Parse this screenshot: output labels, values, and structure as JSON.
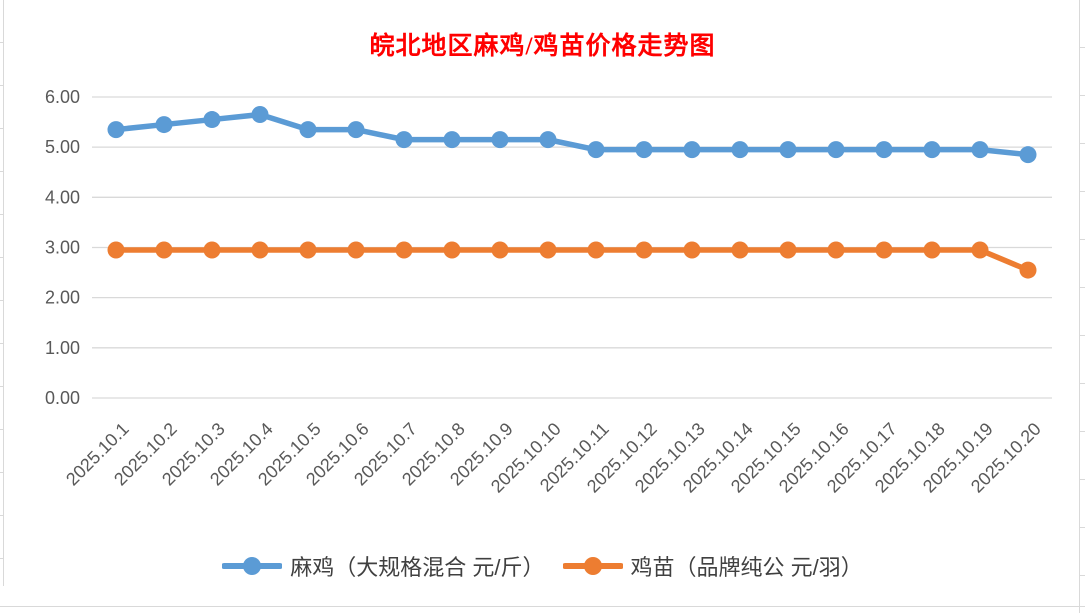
{
  "chart_data": {
    "type": "line",
    "title": "皖北地区麻鸡/鸡苗价格走势图",
    "title_color": "#FF0000",
    "categories": [
      "2025.10.1",
      "2025.10.2",
      "2025.10.3",
      "2025.10.4",
      "2025.10.5",
      "2025.10.6",
      "2025.10.7",
      "2025.10.8",
      "2025.10.9",
      "2025.10.10",
      "2025.10.11",
      "2025.10.12",
      "2025.10.13",
      "2025.10.14",
      "2025.10.15",
      "2025.10.16",
      "2025.10.17",
      "2025.10.18",
      "2025.10.19",
      "2025.10.20"
    ],
    "series": [
      {
        "name": "麻鸡（大规格混合 元/斤）",
        "color": "#5B9BD5",
        "values": [
          5.35,
          5.45,
          5.55,
          5.65,
          5.35,
          5.35,
          5.15,
          5.15,
          5.15,
          5.15,
          4.95,
          4.95,
          4.95,
          4.95,
          4.95,
          4.95,
          4.95,
          4.95,
          4.95,
          4.85
        ]
      },
      {
        "name": "鸡苗（品牌纯公 元/羽）",
        "color": "#ED7D31",
        "values": [
          2.95,
          2.95,
          2.95,
          2.95,
          2.95,
          2.95,
          2.95,
          2.95,
          2.95,
          2.95,
          2.95,
          2.95,
          2.95,
          2.95,
          2.95,
          2.95,
          2.95,
          2.95,
          2.95,
          2.55
        ]
      }
    ],
    "ylim": [
      0,
      6
    ],
    "y_ticks": [
      "6.00",
      "5.00",
      "4.00",
      "3.00",
      "2.00",
      "1.00",
      "0.00"
    ],
    "xlabel": "",
    "ylabel": "",
    "grid": true,
    "legend_position": "bottom",
    "axis_text_color": "#595959",
    "gridline_color": "#D9D9D9",
    "background_color": "#FFFFFF"
  }
}
